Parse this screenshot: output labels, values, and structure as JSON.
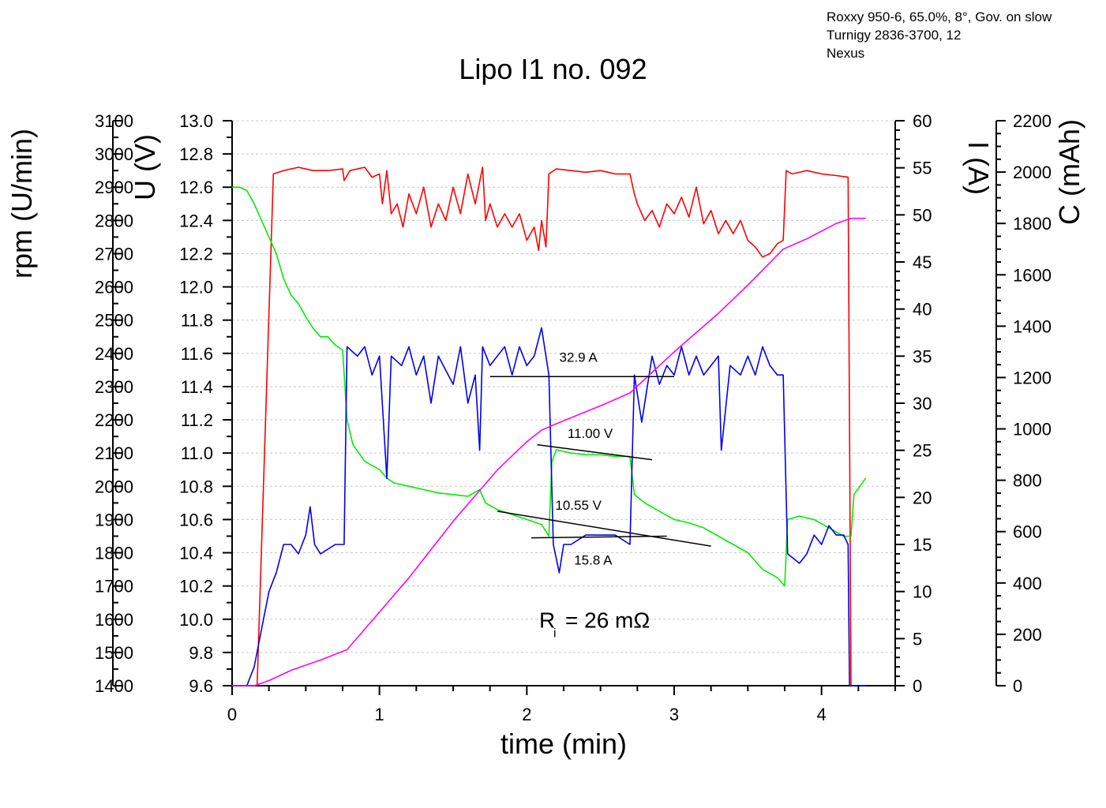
{
  "header_note": {
    "line1": "Roxxy 950-6, 65.0%, 8°, Gov. on slow",
    "line2": "Turnigy 2836-3700, 12",
    "line3": "Nexus"
  },
  "chart_data": {
    "type": "line",
    "title": "Lipo I1 no. 092",
    "xlabel": "time (min)",
    "xlim": [
      0,
      4.5
    ],
    "xticks": [
      0,
      1,
      2,
      3,
      4
    ],
    "axes": {
      "rpm": {
        "label": "rpm (U/min)",
        "range": [
          1400,
          3100
        ],
        "ticks": [
          1400,
          1500,
          1600,
          1700,
          1800,
          1900,
          2000,
          2100,
          2200,
          2300,
          2400,
          2500,
          2600,
          2700,
          2800,
          2900,
          3000,
          3100
        ]
      },
      "voltage": {
        "label": "U (V)",
        "range": [
          9.6,
          13.0
        ],
        "ticks": [
          "9.6",
          "9.8",
          "10.0",
          "10.2",
          "10.4",
          "10.6",
          "10.8",
          "11.0",
          "11.2",
          "11.4",
          "11.6",
          "11.8",
          "12.0",
          "12.2",
          "12.4",
          "12.6",
          "12.8",
          "13.0"
        ]
      },
      "current": {
        "label": "I (A)",
        "range": [
          0,
          60
        ],
        "ticks": [
          0,
          5,
          10,
          15,
          20,
          25,
          30,
          35,
          40,
          45,
          50,
          55,
          60
        ]
      },
      "capacity": {
        "label": "C (mAh)",
        "range": [
          0,
          2200
        ],
        "ticks": [
          0,
          200,
          400,
          600,
          800,
          1000,
          1200,
          1400,
          1600,
          1800,
          2000,
          2200
        ]
      }
    },
    "series": [
      {
        "name": "rpm",
        "axis": "rpm",
        "color": "#ff0000",
        "points": [
          [
            0.17,
            1400
          ],
          [
            0.28,
            2940
          ],
          [
            0.35,
            2950
          ],
          [
            0.45,
            2960
          ],
          [
            0.55,
            2950
          ],
          [
            0.65,
            2950
          ],
          [
            0.75,
            2955
          ],
          [
            0.76,
            2920
          ],
          [
            0.8,
            2950
          ],
          [
            0.9,
            2960
          ],
          [
            0.95,
            2930
          ],
          [
            1.0,
            2940
          ],
          [
            1.02,
            2850
          ],
          [
            1.05,
            2950
          ],
          [
            1.08,
            2820
          ],
          [
            1.12,
            2850
          ],
          [
            1.16,
            2780
          ],
          [
            1.2,
            2880
          ],
          [
            1.25,
            2820
          ],
          [
            1.3,
            2900
          ],
          [
            1.35,
            2780
          ],
          [
            1.4,
            2850
          ],
          [
            1.45,
            2800
          ],
          [
            1.5,
            2900
          ],
          [
            1.55,
            2820
          ],
          [
            1.6,
            2940
          ],
          [
            1.65,
            2850
          ],
          [
            1.7,
            2960
          ],
          [
            1.72,
            2800
          ],
          [
            1.75,
            2850
          ],
          [
            1.8,
            2780
          ],
          [
            1.85,
            2820
          ],
          [
            1.9,
            2780
          ],
          [
            1.95,
            2820
          ],
          [
            2.0,
            2740
          ],
          [
            2.05,
            2780
          ],
          [
            2.08,
            2710
          ],
          [
            2.1,
            2800
          ],
          [
            2.13,
            2720
          ],
          [
            2.15,
            2940
          ],
          [
            2.2,
            2955
          ],
          [
            2.3,
            2950
          ],
          [
            2.4,
            2945
          ],
          [
            2.5,
            2950
          ],
          [
            2.6,
            2940
          ],
          [
            2.7,
            2940
          ],
          [
            2.73,
            2880
          ],
          [
            2.75,
            2850
          ],
          [
            2.8,
            2800
          ],
          [
            2.85,
            2830
          ],
          [
            2.9,
            2780
          ],
          [
            2.95,
            2850
          ],
          [
            3.0,
            2820
          ],
          [
            3.05,
            2870
          ],
          [
            3.1,
            2810
          ],
          [
            3.15,
            2900
          ],
          [
            3.2,
            2790
          ],
          [
            3.25,
            2830
          ],
          [
            3.3,
            2760
          ],
          [
            3.35,
            2800
          ],
          [
            3.4,
            2760
          ],
          [
            3.45,
            2800
          ],
          [
            3.5,
            2740
          ],
          [
            3.55,
            2720
          ],
          [
            3.6,
            2690
          ],
          [
            3.65,
            2700
          ],
          [
            3.7,
            2730
          ],
          [
            3.74,
            2740
          ],
          [
            3.76,
            2950
          ],
          [
            3.8,
            2940
          ],
          [
            3.9,
            2950
          ],
          [
            4.0,
            2940
          ],
          [
            4.1,
            2935
          ],
          [
            4.18,
            2930
          ],
          [
            4.2,
            1400
          ]
        ]
      },
      {
        "name": "voltage",
        "axis": "voltage",
        "color": "#00ee00",
        "points": [
          [
            0.0,
            12.6
          ],
          [
            0.05,
            12.6
          ],
          [
            0.1,
            12.58
          ],
          [
            0.15,
            12.5
          ],
          [
            0.2,
            12.4
          ],
          [
            0.25,
            12.3
          ],
          [
            0.3,
            12.2
          ],
          [
            0.35,
            12.05
          ],
          [
            0.4,
            11.95
          ],
          [
            0.45,
            11.9
          ],
          [
            0.5,
            11.82
          ],
          [
            0.55,
            11.75
          ],
          [
            0.6,
            11.7
          ],
          [
            0.65,
            11.7
          ],
          [
            0.7,
            11.65
          ],
          [
            0.75,
            11.62
          ],
          [
            0.78,
            11.2
          ],
          [
            0.82,
            11.05
          ],
          [
            0.9,
            10.95
          ],
          [
            1.0,
            10.9
          ],
          [
            1.05,
            10.85
          ],
          [
            1.1,
            10.82
          ],
          [
            1.2,
            10.8
          ],
          [
            1.3,
            10.78
          ],
          [
            1.4,
            10.76
          ],
          [
            1.5,
            10.75
          ],
          [
            1.6,
            10.74
          ],
          [
            1.68,
            10.78
          ],
          [
            1.72,
            10.7
          ],
          [
            1.8,
            10.66
          ],
          [
            1.9,
            10.63
          ],
          [
            2.0,
            10.6
          ],
          [
            2.1,
            10.57
          ],
          [
            2.15,
            10.5
          ],
          [
            2.17,
            10.95
          ],
          [
            2.2,
            11.02
          ],
          [
            2.3,
            11.0
          ],
          [
            2.4,
            10.99
          ],
          [
            2.5,
            10.99
          ],
          [
            2.6,
            10.98
          ],
          [
            2.7,
            10.98
          ],
          [
            2.73,
            10.75
          ],
          [
            2.8,
            10.7
          ],
          [
            2.9,
            10.65
          ],
          [
            3.0,
            10.6
          ],
          [
            3.1,
            10.58
          ],
          [
            3.2,
            10.55
          ],
          [
            3.3,
            10.5
          ],
          [
            3.4,
            10.45
          ],
          [
            3.5,
            10.4
          ],
          [
            3.6,
            10.3
          ],
          [
            3.7,
            10.25
          ],
          [
            3.75,
            10.2
          ],
          [
            3.77,
            10.6
          ],
          [
            3.85,
            10.62
          ],
          [
            3.95,
            10.6
          ],
          [
            4.05,
            10.55
          ],
          [
            4.15,
            10.5
          ],
          [
            4.2,
            10.5
          ],
          [
            4.22,
            10.75
          ],
          [
            4.3,
            10.85
          ]
        ]
      },
      {
        "name": "current",
        "axis": "current",
        "color": "#0000ee",
        "points": [
          [
            0.0,
            0
          ],
          [
            0.1,
            0
          ],
          [
            0.15,
            2
          ],
          [
            0.2,
            6
          ],
          [
            0.25,
            10
          ],
          [
            0.3,
            12
          ],
          [
            0.35,
            15
          ],
          [
            0.4,
            15
          ],
          [
            0.45,
            14
          ],
          [
            0.5,
            16
          ],
          [
            0.53,
            19
          ],
          [
            0.56,
            15
          ],
          [
            0.6,
            14
          ],
          [
            0.7,
            15
          ],
          [
            0.76,
            15
          ],
          [
            0.78,
            36
          ],
          [
            0.85,
            35
          ],
          [
            0.9,
            36
          ],
          [
            0.95,
            33
          ],
          [
            1.0,
            35
          ],
          [
            1.05,
            22
          ],
          [
            1.08,
            35
          ],
          [
            1.15,
            34
          ],
          [
            1.2,
            36
          ],
          [
            1.25,
            33
          ],
          [
            1.3,
            35
          ],
          [
            1.35,
            30
          ],
          [
            1.4,
            35
          ],
          [
            1.5,
            32
          ],
          [
            1.55,
            36
          ],
          [
            1.6,
            30
          ],
          [
            1.65,
            33
          ],
          [
            1.68,
            25
          ],
          [
            1.7,
            36
          ],
          [
            1.75,
            34
          ],
          [
            1.8,
            35
          ],
          [
            1.85,
            36
          ],
          [
            1.9,
            33
          ],
          [
            1.95,
            36
          ],
          [
            2.0,
            34
          ],
          [
            2.05,
            35
          ],
          [
            2.1,
            38
          ],
          [
            2.15,
            33
          ],
          [
            2.18,
            15
          ],
          [
            2.22,
            12
          ],
          [
            2.25,
            15
          ],
          [
            2.3,
            15
          ],
          [
            2.4,
            16
          ],
          [
            2.5,
            16
          ],
          [
            2.6,
            16
          ],
          [
            2.7,
            15
          ],
          [
            2.73,
            33
          ],
          [
            2.78,
            28
          ],
          [
            2.85,
            35
          ],
          [
            2.9,
            32
          ],
          [
            2.95,
            34
          ],
          [
            3.0,
            33
          ],
          [
            3.05,
            36
          ],
          [
            3.1,
            33
          ],
          [
            3.15,
            35
          ],
          [
            3.2,
            33
          ],
          [
            3.25,
            34
          ],
          [
            3.3,
            35
          ],
          [
            3.32,
            25
          ],
          [
            3.38,
            34
          ],
          [
            3.45,
            33
          ],
          [
            3.5,
            35
          ],
          [
            3.55,
            33
          ],
          [
            3.6,
            36
          ],
          [
            3.65,
            34
          ],
          [
            3.7,
            33
          ],
          [
            3.74,
            33
          ],
          [
            3.77,
            14
          ],
          [
            3.85,
            13
          ],
          [
            3.9,
            14
          ],
          [
            3.95,
            16
          ],
          [
            4.0,
            15
          ],
          [
            4.05,
            17
          ],
          [
            4.1,
            16
          ],
          [
            4.15,
            16
          ],
          [
            4.18,
            15
          ],
          [
            4.19,
            0
          ],
          [
            4.3,
            0
          ]
        ]
      },
      {
        "name": "capacity",
        "axis": "capacity",
        "color": "#ff00ff",
        "points": [
          [
            0.0,
            0
          ],
          [
            0.15,
            0
          ],
          [
            0.25,
            20
          ],
          [
            0.4,
            60
          ],
          [
            0.6,
            100
          ],
          [
            0.78,
            140
          ],
          [
            0.9,
            220
          ],
          [
            1.2,
            420
          ],
          [
            1.5,
            640
          ],
          [
            1.8,
            840
          ],
          [
            2.0,
            950
          ],
          [
            2.1,
            995
          ],
          [
            2.2,
            1020
          ],
          [
            2.5,
            1090
          ],
          [
            2.7,
            1140
          ],
          [
            3.0,
            1300
          ],
          [
            3.3,
            1450
          ],
          [
            3.5,
            1560
          ],
          [
            3.74,
            1700
          ],
          [
            3.9,
            1740
          ],
          [
            4.0,
            1770
          ],
          [
            4.1,
            1800
          ],
          [
            4.2,
            1820
          ],
          [
            4.3,
            1820
          ]
        ]
      }
    ],
    "annotations": [
      {
        "name": "annotation-current-high",
        "text": "32.9 A",
        "x": 2.35,
        "axis": "voltage",
        "y": 11.55,
        "anchor": "middle"
      },
      {
        "name": "annotation-voltage-high",
        "text": "11.00 V",
        "x": 2.43,
        "axis": "voltage",
        "y": 11.09,
        "anchor": "middle"
      },
      {
        "name": "annotation-voltage-low",
        "text": "10.55 V",
        "x": 2.35,
        "axis": "voltage",
        "y": 10.66,
        "anchor": "middle"
      },
      {
        "name": "annotation-current-low",
        "text": "15.8 A",
        "x": 2.45,
        "axis": "voltage",
        "y": 10.33,
        "anchor": "middle"
      }
    ],
    "trend_lines": [
      {
        "name": "trend-line-current-high",
        "axis": "voltage",
        "from": [
          1.75,
          11.46
        ],
        "to": [
          3.0,
          11.46
        ]
      },
      {
        "name": "trend-line-voltage-high",
        "axis": "voltage",
        "from": [
          2.07,
          11.05
        ],
        "to": [
          2.85,
          10.96
        ]
      },
      {
        "name": "trend-line-voltage-low",
        "axis": "voltage",
        "from": [
          1.8,
          10.65
        ],
        "to": [
          3.25,
          10.44
        ]
      },
      {
        "name": "trend-line-current-low",
        "axis": "voltage",
        "from": [
          2.03,
          10.49
        ],
        "to": [
          2.95,
          10.5
        ]
      }
    ],
    "resistance": {
      "main": "R",
      "subscript": "i",
      "value": "= 26 mΩ",
      "x": 2.25,
      "y": 9.95
    }
  }
}
